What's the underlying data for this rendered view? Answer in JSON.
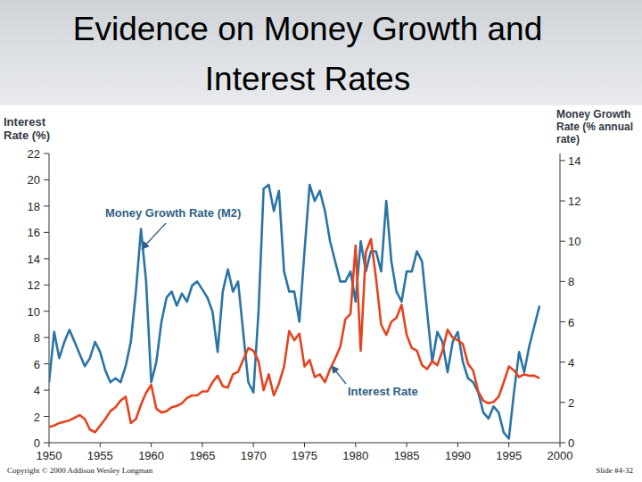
{
  "chart_data": {
    "type": "line",
    "title": "Evidence on Money Growth and Interest Rates",
    "y_label": "Interest Rate (%)",
    "y2_label": "Money Growth Rate (% annual rate)",
    "source": "Copyright © 2000 Addison Wesley Longman",
    "slide_number": "Slide #4-32",
    "grid": false,
    "xlim": [
      1950,
      2000
    ],
    "xticks": [
      1950,
      1955,
      1960,
      1965,
      1970,
      1975,
      1980,
      1985,
      1990,
      1995,
      2000
    ],
    "ylim": [
      0,
      22
    ],
    "yticks": [
      0,
      2,
      4,
      6,
      8,
      10,
      12,
      14,
      16,
      18,
      20,
      22
    ],
    "y2lim": [
      0,
      14.35
    ],
    "y2ticks": [
      0,
      2,
      4,
      6,
      8,
      10,
      12,
      14
    ],
    "x": [
      1950,
      1950.5,
      1951,
      1951.5,
      1952,
      1952.5,
      1953,
      1953.5,
      1954,
      1954.5,
      1955,
      1955.5,
      1956,
      1956.5,
      1957,
      1957.5,
      1958,
      1958.5,
      1959,
      1959.5,
      1960,
      1960.5,
      1961,
      1961.5,
      1962,
      1962.5,
      1963,
      1963.5,
      1964,
      1964.5,
      1965,
      1965.5,
      1966,
      1966.5,
      1967,
      1967.5,
      1968,
      1968.5,
      1969,
      1969.5,
      1970,
      1970.5,
      1971,
      1971.5,
      1972,
      1972.5,
      1973,
      1973.5,
      1974,
      1974.5,
      1975,
      1975.5,
      1976,
      1976.5,
      1977,
      1977.5,
      1978,
      1978.5,
      1979,
      1979.5,
      1980,
      1980.5,
      1981,
      1981.5,
      1982,
      1982.5,
      1983,
      1983.5,
      1984,
      1984.5,
      1985,
      1985.5,
      1986,
      1986.5,
      1987,
      1987.5,
      1988,
      1988.5,
      1989,
      1989.5,
      1990,
      1990.5,
      1991,
      1991.5,
      1992,
      1992.5,
      1993,
      1993.5,
      1994,
      1994.5,
      1995,
      1995.5,
      1996,
      1996.5,
      1997,
      1997.5,
      1998
    ],
    "series": [
      {
        "name": "Money Growth Rate (M2)",
        "color": "#2b74a6",
        "axis": "y2",
        "values": [
          3.0,
          5.5,
          4.2,
          5.0,
          5.6,
          5.0,
          4.4,
          3.8,
          4.2,
          5.0,
          4.5,
          3.6,
          3.0,
          3.2,
          3.0,
          3.8,
          5.0,
          7.5,
          10.6,
          8.0,
          3.0,
          4.0,
          6.0,
          7.2,
          7.5,
          6.8,
          7.4,
          7.0,
          7.8,
          8.0,
          7.6,
          7.2,
          6.5,
          4.5,
          7.5,
          8.6,
          7.5,
          8.0,
          5.5,
          3.0,
          2.5,
          6.5,
          12.6,
          12.8,
          11.5,
          12.5,
          8.5,
          7.5,
          7.5,
          6.0,
          9.5,
          12.8,
          12.0,
          12.5,
          11.5,
          10.0,
          9.0,
          8.0,
          8.0,
          8.5,
          7.0,
          10.0,
          8.5,
          9.5,
          9.5,
          8.5,
          12.0,
          9.0,
          7.5,
          7.0,
          8.5,
          8.5,
          9.5,
          9.0,
          6.5,
          4.0,
          5.5,
          5.0,
          3.5,
          5.0,
          5.5,
          4.0,
          3.2,
          3.0,
          2.5,
          1.5,
          1.2,
          1.8,
          1.5,
          0.5,
          0.2,
          2.5,
          4.5,
          3.5,
          4.8,
          5.8,
          6.8
        ]
      },
      {
        "name": "Interest Rate",
        "color": "#e5431f",
        "values": [
          1.2,
          1.3,
          1.5,
          1.6,
          1.7,
          1.9,
          2.1,
          1.8,
          1.0,
          0.8,
          1.3,
          1.8,
          2.4,
          2.7,
          3.2,
          3.5,
          1.5,
          1.8,
          2.9,
          3.8,
          4.4,
          2.6,
          2.3,
          2.4,
          2.7,
          2.8,
          3.0,
          3.4,
          3.6,
          3.6,
          3.9,
          3.9,
          4.6,
          5.1,
          4.3,
          4.2,
          5.2,
          5.4,
          6.3,
          7.2,
          7.0,
          6.2,
          4.0,
          5.2,
          3.6,
          4.5,
          5.8,
          8.5,
          7.8,
          8.3,
          5.8,
          6.3,
          5.0,
          5.2,
          4.6,
          5.6,
          6.4,
          7.3,
          9.4,
          9.8,
          15.0,
          7.0,
          14.5,
          15.5,
          12.5,
          9.0,
          8.2,
          9.2,
          9.5,
          10.5,
          8.2,
          7.2,
          7.0,
          5.9,
          5.6,
          6.2,
          5.9,
          7.0,
          8.6,
          8.0,
          7.8,
          7.5,
          6.0,
          5.5,
          3.9,
          3.2,
          3.0,
          3.1,
          3.5,
          4.6,
          5.8,
          5.5,
          5.0,
          5.2,
          5.1,
          5.1,
          4.9
        ]
      }
    ]
  }
}
